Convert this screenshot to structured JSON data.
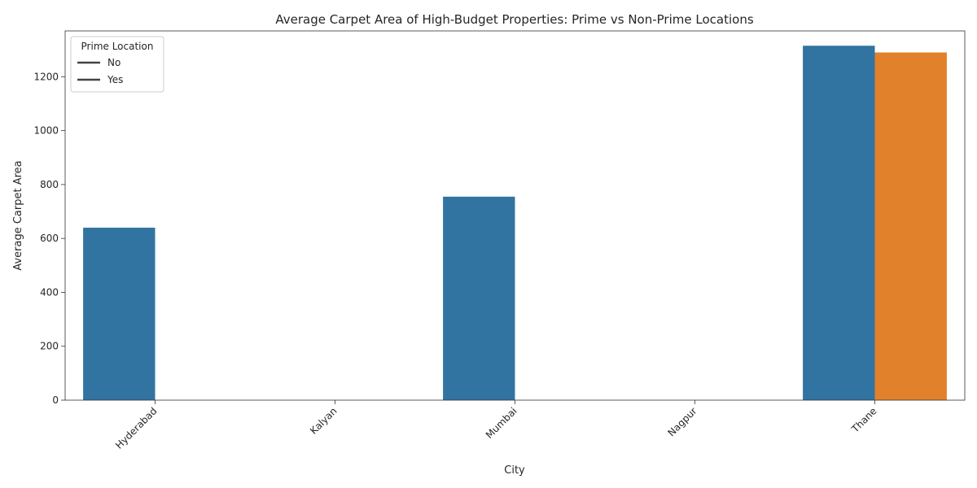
{
  "chart_data": {
    "type": "bar",
    "title": "Average Carpet Area of High-Budget Properties: Prime vs Non-Prime Locations",
    "xlabel": "City",
    "ylabel": "Average Carpet Area",
    "categories": [
      "Hyderabad",
      "Kalyan",
      "Mumbai",
      "Nagpur",
      "Thane"
    ],
    "series": [
      {
        "name": "No",
        "color": "#3274a1",
        "values": [
          640,
          null,
          755,
          null,
          1315
        ]
      },
      {
        "name": "Yes",
        "color": "#e1812c",
        "values": [
          null,
          null,
          null,
          null,
          1290
        ]
      }
    ],
    "ylim": [
      0,
      1370
    ],
    "yticks": [
      0,
      200,
      400,
      600,
      800,
      1000,
      1200
    ],
    "grid": false,
    "legend": {
      "title": "Prime Location",
      "position": "top-left",
      "entries": [
        "No",
        "Yes"
      ],
      "line_color": "#444444"
    },
    "x_tick_rotation": 45
  }
}
